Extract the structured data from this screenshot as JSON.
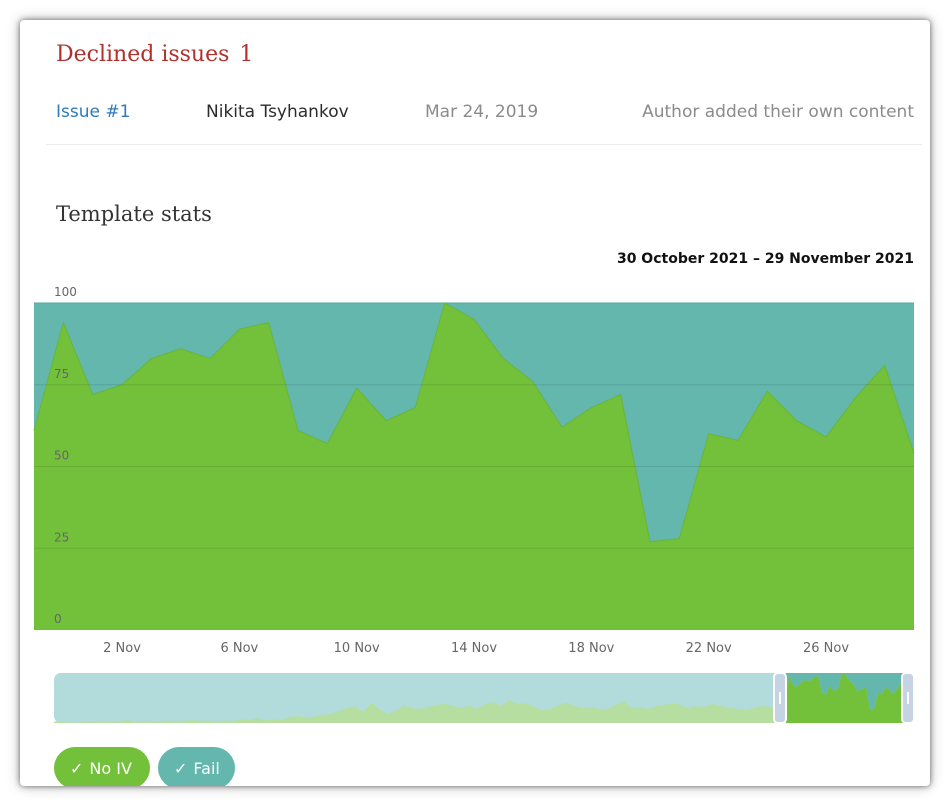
{
  "declined": {
    "title": "Declined issues",
    "count": "1",
    "issue": {
      "link": "Issue #1",
      "author": "Nikita Tsyhankov",
      "date": "Mar 24, 2019",
      "reason": "Author added their own content"
    }
  },
  "stats": {
    "title": "Template stats",
    "date_range": "30 October 2021 – 29 November 2021"
  },
  "colors": {
    "no_iv": "#73c03a",
    "fail": "#63b7ad",
    "navigator_bg": "#b1dcdb",
    "navigator_green": "#b6dea0",
    "title_red": "#b0302c",
    "link_blue": "#2e79b9"
  },
  "chart_data": {
    "type": "area",
    "stacked": true,
    "ylim": [
      0,
      100
    ],
    "yticks": [
      0,
      25,
      50,
      75,
      100
    ],
    "grid": true,
    "x": [
      "30 Oct",
      "31 Oct",
      "1 Nov",
      "2 Nov",
      "3 Nov",
      "4 Nov",
      "5 Nov",
      "6 Nov",
      "7 Nov",
      "8 Nov",
      "9 Nov",
      "10 Nov",
      "11 Nov",
      "12 Nov",
      "13 Nov",
      "14 Nov",
      "15 Nov",
      "16 Nov",
      "17 Nov",
      "18 Nov",
      "19 Nov",
      "20 Nov",
      "21 Nov",
      "22 Nov",
      "23 Nov",
      "24 Nov",
      "25 Nov",
      "26 Nov",
      "27 Nov",
      "28 Nov",
      "29 Nov"
    ],
    "xtick_labels": [
      "2 Nov",
      "6 Nov",
      "10 Nov",
      "14 Nov",
      "18 Nov",
      "22 Nov",
      "26 Nov"
    ],
    "series": [
      {
        "name": "No IV",
        "values": [
          61,
          94,
          72,
          75,
          83,
          86,
          83,
          92,
          94,
          61,
          57,
          74,
          64,
          68,
          100,
          95,
          83,
          76,
          62,
          68,
          72,
          27,
          28,
          60,
          58,
          73,
          64,
          59,
          71,
          81,
          54
        ]
      },
      {
        "name": "Fail",
        "values": [
          39,
          6,
          28,
          25,
          17,
          14,
          17,
          8,
          6,
          39,
          43,
          26,
          36,
          32,
          0,
          5,
          17,
          24,
          38,
          32,
          28,
          73,
          72,
          40,
          42,
          27,
          36,
          41,
          29,
          19,
          46
        ]
      }
    ]
  },
  "navigator": {
    "values": [
      3,
      2,
      1,
      1,
      3,
      2,
      4,
      1,
      3,
      6,
      2,
      4,
      3,
      2,
      5,
      3,
      4,
      6,
      4,
      5,
      3,
      5,
      4,
      8,
      6,
      10,
      5,
      8,
      6,
      12,
      14,
      10,
      13,
      16,
      18,
      24,
      30,
      33,
      22,
      40,
      28,
      18,
      24,
      35,
      30,
      28,
      32,
      36,
      38,
      34,
      30,
      35,
      28,
      38,
      42,
      34,
      46,
      38,
      40,
      32,
      26,
      28,
      36,
      40,
      34,
      30,
      32,
      28,
      26,
      36,
      44,
      30,
      32,
      28,
      34,
      36,
      40,
      36,
      30,
      34,
      32,
      38,
      34,
      30,
      28,
      26,
      30,
      34,
      32,
      24
    ]
  },
  "legend": {
    "no_iv": "No IV",
    "fail": "Fail",
    "check_icon": "✓"
  }
}
